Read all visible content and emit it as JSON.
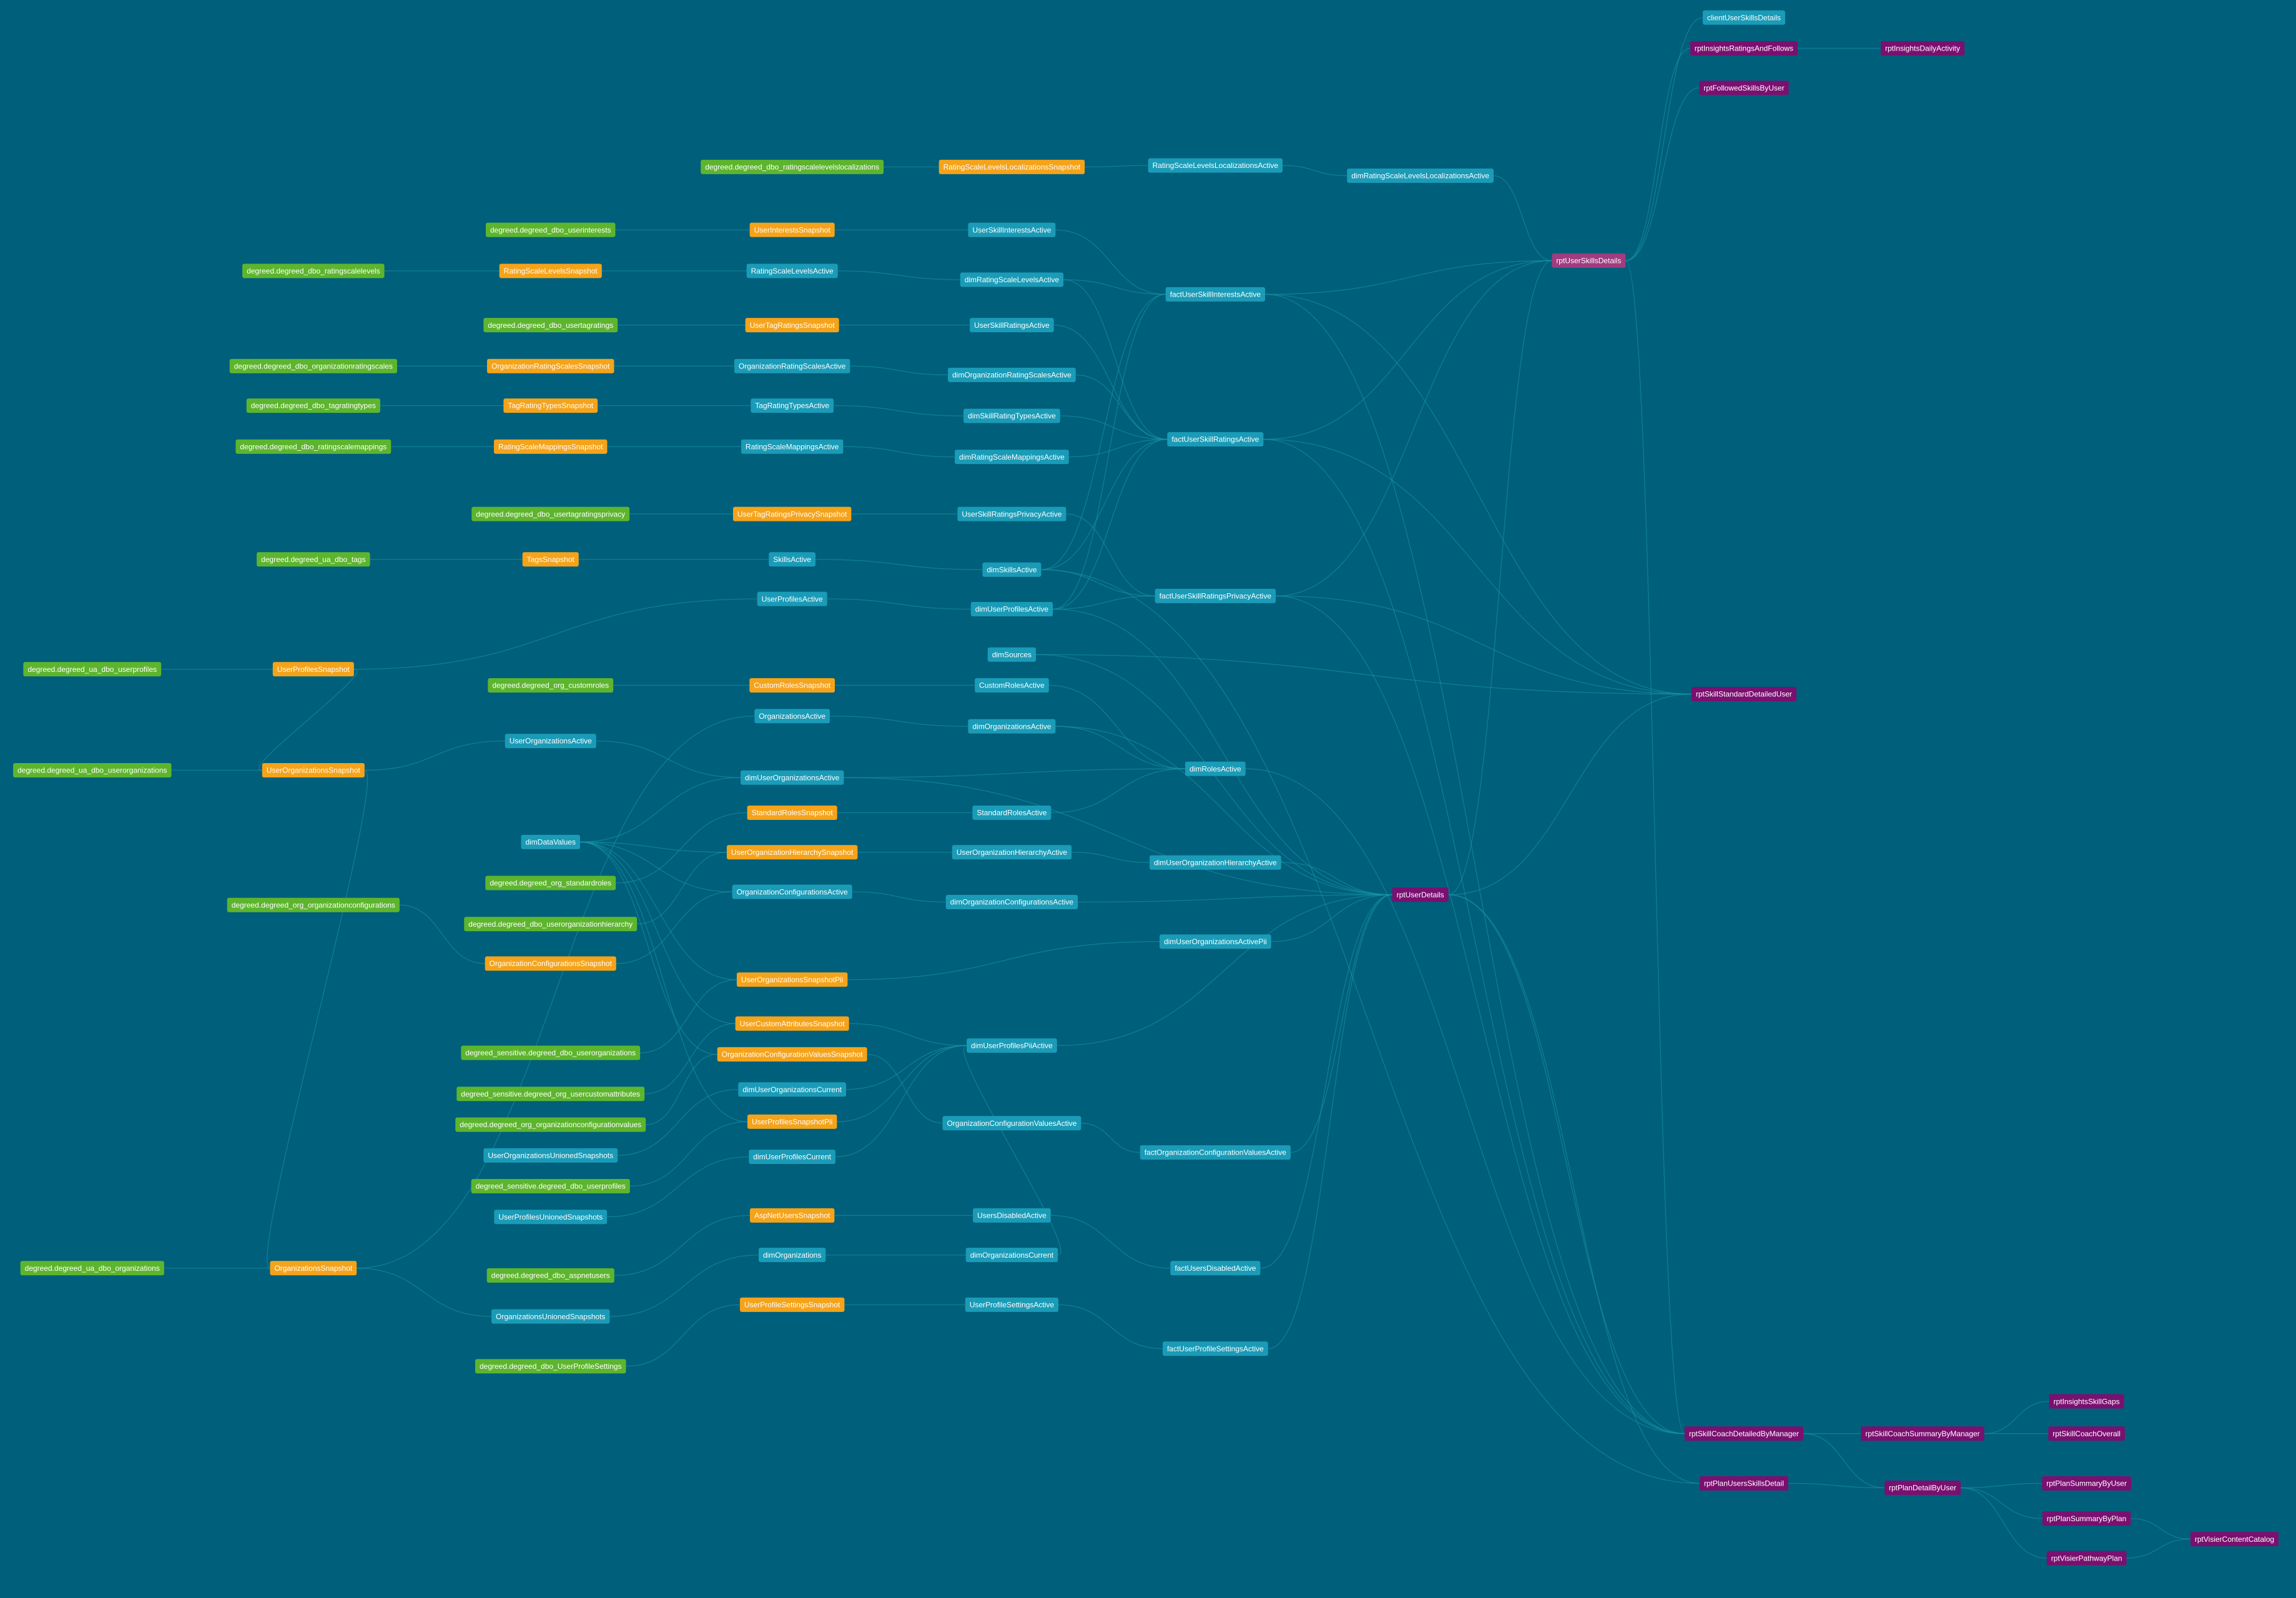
{
  "nodes": [
    {
      "label": "clientUserSkillsDetails"
    },
    {
      "label": "rptInsightsRatingsAndFollows"
    },
    {
      "label": "rptInsightsDailyActivity"
    },
    {
      "label": "rptFollowedSkillsByUser"
    },
    {
      "label": "degreed.degreed_dbo_ratingscalelevelslocalizations"
    },
    {
      "label": "RatingScaleLevelsLocalizationsSnapshot"
    },
    {
      "label": "RatingScaleLevelsLocalizationsActive"
    },
    {
      "label": "dimRatingScaleLevelsLocalizationsActive"
    },
    {
      "label": "degreed.degreed_dbo_userinterests"
    },
    {
      "label": "UserInterestsSnapshot"
    },
    {
      "label": "UserSkillInterestsActive"
    },
    {
      "label": "rptUserSkillsDetails"
    },
    {
      "label": "degreed.degreed_dbo_ratingscalelevels"
    },
    {
      "label": "RatingScaleLevelsSnapshot"
    },
    {
      "label": "RatingScaleLevelsActive"
    },
    {
      "label": "dimRatingScaleLevelsActive"
    },
    {
      "label": "factUserSkillInterestsActive"
    },
    {
      "label": "degreed.degreed_dbo_usertagratings"
    },
    {
      "label": "UserTagRatingsSnapshot"
    },
    {
      "label": "UserSkillRatingsActive"
    },
    {
      "label": "degreed.degreed_dbo_organizationratingscales"
    },
    {
      "label": "OrganizationRatingScalesSnapshot"
    },
    {
      "label": "OrganizationRatingScalesActive"
    },
    {
      "label": "dimOrganizationRatingScalesActive"
    },
    {
      "label": "degreed.degreed_dbo_tagratingtypes"
    },
    {
      "label": "TagRatingTypesSnapshot"
    },
    {
      "label": "TagRatingTypesActive"
    },
    {
      "label": "dimSkillRatingTypesActive"
    },
    {
      "label": "degreed.degreed_dbo_ratingscalemappings"
    },
    {
      "label": "RatingScaleMappingsSnapshot"
    },
    {
      "label": "RatingScaleMappingsActive"
    },
    {
      "label": "factUserSkillRatingsActive"
    },
    {
      "label": "dimRatingScaleMappingsActive"
    },
    {
      "label": "degreed.degreed_dbo_usertagratingsprivacy"
    },
    {
      "label": "UserTagRatingsPrivacySnapshot"
    },
    {
      "label": "UserSkillRatingsPrivacyActive"
    },
    {
      "label": "degreed.degreed_ua_dbo_tags"
    },
    {
      "label": "TagsSnapshot"
    },
    {
      "label": "SkillsActive"
    },
    {
      "label": "dimSkillsActive"
    },
    {
      "label": "UserProfilesActive"
    },
    {
      "label": "factUserSkillRatingsPrivacyActive"
    },
    {
      "label": "dimUserProfilesActive"
    },
    {
      "label": "dimSources"
    },
    {
      "label": "degreed.degreed_ua_dbo_userprofiles"
    },
    {
      "label": "UserProfilesSnapshot"
    },
    {
      "label": "degreed.degreed_org_customroles"
    },
    {
      "label": "CustomRolesSnapshot"
    },
    {
      "label": "CustomRolesActive"
    },
    {
      "label": "rptSkillStandardDetailedUser"
    },
    {
      "label": "OrganizationsActive"
    },
    {
      "label": "dimOrganizationsActive"
    },
    {
      "label": "UserOrganizationsActive"
    },
    {
      "label": "degreed.degreed_ua_dbo_userorganizations"
    },
    {
      "label": "UserOrganizationsSnapshot"
    },
    {
      "label": "dimRolesActive"
    },
    {
      "label": "dimUserOrganizationsActive"
    },
    {
      "label": "StandardRolesSnapshot"
    },
    {
      "label": "StandardRolesActive"
    },
    {
      "label": "dimDataValues"
    },
    {
      "label": "UserOrganizationHierarchySnapshot"
    },
    {
      "label": "UserOrganizationHierarchyActive"
    },
    {
      "label": "dimUserOrganizationHierarchyActive"
    },
    {
      "label": "degreed.degreed_org_standardroles"
    },
    {
      "label": "OrganizationConfigurationsActive"
    },
    {
      "label": "rptUserDetails"
    },
    {
      "label": "degreed.degreed_org_organizationconfigurations"
    },
    {
      "label": "dimOrganizationConfigurationsActive"
    },
    {
      "label": "degreed.degreed_dbo_userorganizationhierarchy"
    },
    {
      "label": "dimUserOrganizationsActivePii"
    },
    {
      "label": "OrganizationConfigurationsSnapshot"
    },
    {
      "label": "UserOrganizationsSnapshotPii"
    },
    {
      "label": "UserCustomAttributesSnapshot"
    },
    {
      "label": "dimUserProfilesPiiActive"
    },
    {
      "label": "degreed_sensitive.degreed_dbo_userorganizations"
    },
    {
      "label": "OrganizationConfigurationValuesSnapshot"
    },
    {
      "label": "dimUserOrganizationsCurrent"
    },
    {
      "label": "degreed_sensitive.degreed_org_usercustomattributes"
    },
    {
      "label": "UserProfilesSnapshotPii"
    },
    {
      "label": "OrganizationConfigurationValuesActive"
    },
    {
      "label": "degreed.degreed_org_organizationconfigurationvalues"
    },
    {
      "label": "factOrganizationConfigurationValuesActive"
    },
    {
      "label": "UserOrganizationsUnionedSnapshots"
    },
    {
      "label": "dimUserProfilesCurrent"
    },
    {
      "label": "degreed_sensitive.degreed_dbo_userprofiles"
    },
    {
      "label": "AspNetUsersSnapshot"
    },
    {
      "label": "UsersDisabledActive"
    },
    {
      "label": "UserProfilesUnionedSnapshots"
    },
    {
      "label": "dimOrganizations"
    },
    {
      "label": "dimOrganizationsCurrent"
    },
    {
      "label": "degreed.degreed_ua_dbo_organizations"
    },
    {
      "label": "OrganizationsSnapshot"
    },
    {
      "label": "factUsersDisabledActive"
    },
    {
      "label": "degreed.degreed_dbo_aspnetusers"
    },
    {
      "label": "UserProfileSettingsSnapshot"
    },
    {
      "label": "UserProfileSettingsActive"
    },
    {
      "label": "OrganizationsUnionedSnapshots"
    },
    {
      "label": "factUserProfileSettingsActive"
    },
    {
      "label": "degreed.degreed_dbo_UserProfileSettings"
    },
    {
      "label": "rptInsightsSkillGaps"
    },
    {
      "label": "rptSkillCoachDetailedByManager"
    },
    {
      "label": "rptSkillCoachSummaryByManager"
    },
    {
      "label": "rptSkillCoachOverall"
    },
    {
      "label": "rptPlanUsersSkillsDetail"
    },
    {
      "label": "rptPlanDetailByUser"
    },
    {
      "label": "rptPlanSummaryByUser"
    },
    {
      "label": "rptPlanSummaryByPlan"
    },
    {
      "label": "rptVisierContentCatalog"
    },
    {
      "label": "rptVisierPathwayPlan"
    }
  ]
}
